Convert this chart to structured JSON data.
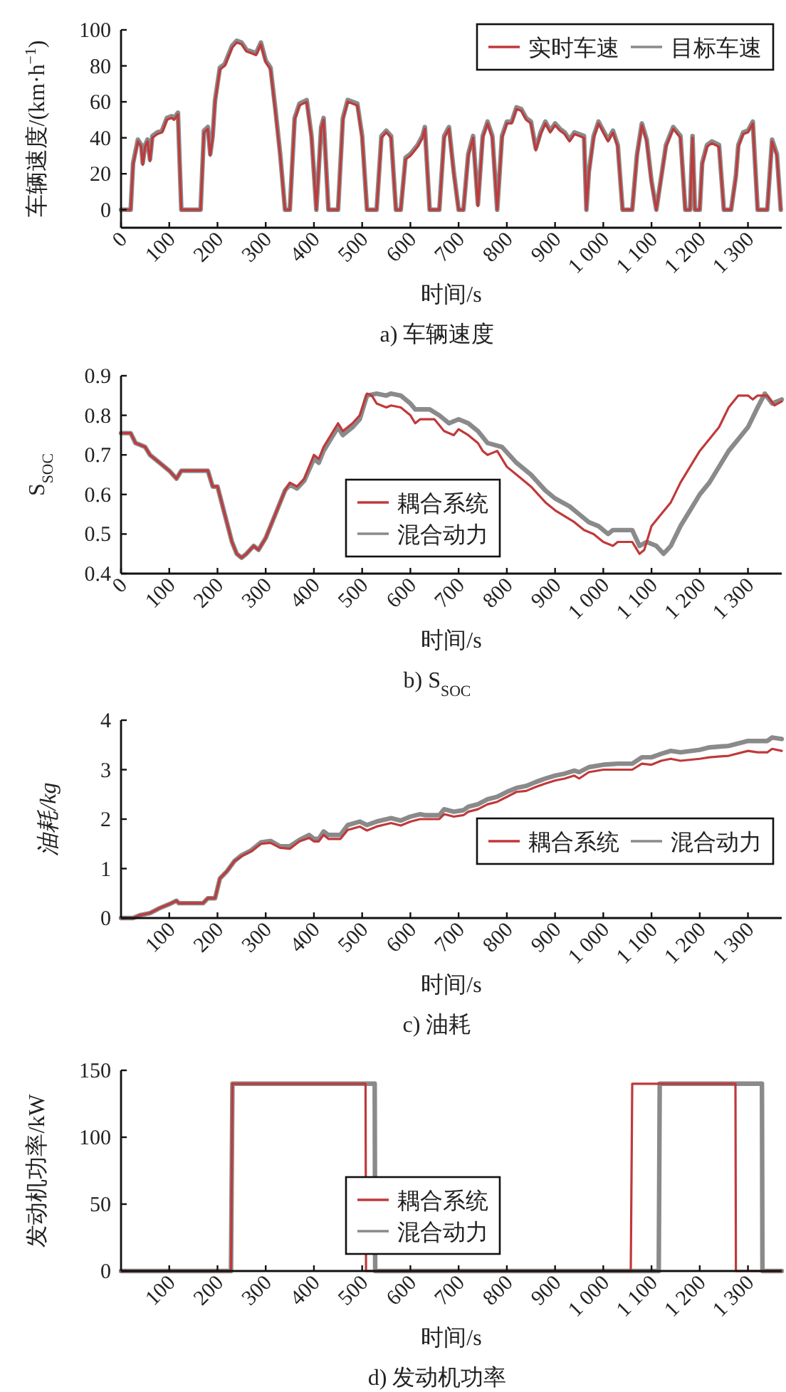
{
  "chart_data": [
    {
      "type": "line",
      "title": "a) 车辆速度",
      "xlabel": "时间/s",
      "ylabel": "车辆速度/(km·h$^{−1}$)",
      "legend": "top right",
      "xlim": [
        0,
        1370
      ],
      "xticks": [
        0,
        100,
        200,
        300,
        400,
        500,
        600,
        700,
        800,
        900,
        {
          "value": 1000,
          "label": "1 000"
        },
        {
          "value": 1100,
          "label": "1 100"
        },
        {
          "value": 1200,
          "label": "1 200"
        },
        {
          "value": 1300,
          "label": "1 300"
        }
      ],
      "ylim": [
        -10,
        100
      ],
      "yticks": [
        0,
        20,
        40,
        60,
        80,
        100
      ],
      "series": [
        {
          "name": "实时车速",
          "color": "#c0393b",
          "x": [
            0,
            20,
            25,
            35,
            42,
            45,
            50,
            55,
            60,
            65,
            75,
            85,
            95,
            105,
            110,
            118,
            125,
            165,
            172,
            180,
            185,
            190,
            195,
            205,
            215,
            230,
            240,
            250,
            260,
            270,
            280,
            290,
            300,
            310,
            320,
            330,
            340,
            350,
            360,
            370,
            385,
            395,
            405,
            415,
            420,
            430,
            450,
            460,
            470,
            490,
            500,
            510,
            530,
            540,
            550,
            560,
            570,
            580,
            590,
            600,
            615,
            625,
            630,
            640,
            660,
            670,
            680,
            690,
            700,
            710,
            720,
            730,
            740,
            750,
            760,
            770,
            780,
            790,
            800,
            810,
            820,
            830,
            840,
            850,
            860,
            870,
            880,
            890,
            900,
            910,
            920,
            930,
            940,
            950,
            960,
            965,
            970,
            980,
            990,
            1000,
            1010,
            1020,
            1030,
            1040,
            1060,
            1070,
            1080,
            1090,
            1100,
            1110,
            1130,
            1145,
            1160,
            1170,
            1180,
            1185,
            1190,
            1200,
            1205,
            1215,
            1225,
            1240,
            1250,
            1265,
            1275,
            1280,
            1290,
            1300,
            1310,
            1320,
            1340,
            1350,
            1360,
            1368
          ],
          "values": [
            0,
            0,
            25,
            38,
            35,
            25,
            35,
            38,
            27,
            40,
            42,
            43,
            50,
            51,
            50,
            53,
            0,
            0,
            43,
            45,
            30,
            40,
            60,
            78,
            80,
            90,
            93,
            92,
            88,
            87,
            86,
            92,
            82,
            78,
            55,
            30,
            0,
            0,
            50,
            58,
            60,
            40,
            0,
            45,
            50,
            0,
            0,
            50,
            60,
            58,
            40,
            0,
            0,
            40,
            43,
            40,
            0,
            0,
            28,
            30,
            35,
            40,
            45,
            0,
            0,
            40,
            45,
            20,
            0,
            0,
            30,
            40,
            2,
            40,
            48,
            40,
            0,
            40,
            48,
            48,
            56,
            55,
            50,
            48,
            33,
            42,
            48,
            43,
            47,
            44,
            42,
            38,
            42,
            41,
            40,
            0,
            20,
            40,
            48,
            43,
            38,
            43,
            35,
            0,
            0,
            30,
            47,
            38,
            15,
            0,
            35,
            45,
            40,
            0,
            0,
            40,
            0,
            0,
            25,
            35,
            37,
            35,
            0,
            0,
            18,
            35,
            42,
            43,
            48,
            0,
            0,
            38,
            30,
            0
          ]
        },
        {
          "name": "目标车速",
          "color": "#8a8a8a",
          "x": [
            0,
            20,
            25,
            35,
            42,
            45,
            50,
            55,
            60,
            65,
            75,
            85,
            95,
            105,
            110,
            118,
            125,
            165,
            172,
            180,
            185,
            190,
            195,
            205,
            215,
            230,
            240,
            250,
            260,
            270,
            280,
            290,
            300,
            310,
            320,
            330,
            340,
            350,
            360,
            370,
            385,
            395,
            405,
            415,
            420,
            430,
            450,
            460,
            470,
            490,
            500,
            510,
            530,
            540,
            550,
            560,
            570,
            580,
            590,
            600,
            615,
            625,
            630,
            640,
            660,
            670,
            680,
            690,
            700,
            710,
            720,
            730,
            740,
            750,
            760,
            770,
            780,
            790,
            800,
            810,
            820,
            830,
            840,
            850,
            860,
            870,
            880,
            890,
            900,
            910,
            920,
            930,
            940,
            950,
            960,
            965,
            970,
            980,
            990,
            1000,
            1010,
            1020,
            1030,
            1040,
            1060,
            1070,
            1080,
            1090,
            1100,
            1110,
            1130,
            1145,
            1160,
            1170,
            1180,
            1185,
            1190,
            1200,
            1205,
            1215,
            1225,
            1240,
            1250,
            1265,
            1275,
            1280,
            1290,
            1300,
            1310,
            1320,
            1340,
            1350,
            1360,
            1368
          ],
          "values": [
            0,
            0,
            26,
            39,
            36,
            26,
            36,
            39,
            28,
            41,
            43,
            44,
            51,
            52,
            51,
            54,
            0,
            0,
            44,
            46,
            31,
            41,
            61,
            79,
            81,
            91,
            94,
            93,
            89,
            88,
            87,
            93,
            83,
            79,
            56,
            31,
            0,
            0,
            51,
            59,
            61,
            41,
            0,
            46,
            51,
            0,
            0,
            51,
            61,
            59,
            41,
            0,
            0,
            41,
            44,
            41,
            0,
            0,
            29,
            31,
            36,
            41,
            46,
            0,
            0,
            41,
            46,
            21,
            0,
            0,
            31,
            41,
            3,
            41,
            49,
            41,
            0,
            41,
            49,
            49,
            57,
            56,
            51,
            49,
            34,
            43,
            49,
            44,
            48,
            45,
            43,
            39,
            43,
            42,
            41,
            0,
            21,
            41,
            49,
            44,
            39,
            44,
            36,
            0,
            0,
            31,
            48,
            39,
            16,
            0,
            36,
            46,
            41,
            0,
            0,
            41,
            0,
            0,
            26,
            36,
            38,
            36,
            0,
            0,
            19,
            36,
            43,
            44,
            49,
            0,
            0,
            39,
            31,
            0
          ]
        }
      ]
    },
    {
      "type": "line",
      "title": "b) S$_{SOC}$",
      "xlabel": "时间/s",
      "ylabel": "S$_{SOC}$",
      "legend": "bottom",
      "xlim": [
        0,
        1370
      ],
      "xticks": [
        0,
        100,
        200,
        300,
        400,
        500,
        600,
        700,
        800,
        900,
        {
          "value": 1000,
          "label": "1 000"
        },
        {
          "value": 1100,
          "label": "1 100"
        },
        {
          "value": 1200,
          "label": "1 200"
        },
        {
          "value": 1300,
          "label": "1 300"
        }
      ],
      "ylim": [
        0.4,
        0.9
      ],
      "yticks": [
        0.4,
        0.5,
        0.6,
        0.7,
        0.8,
        0.9
      ],
      "series": [
        {
          "name": "耦合系统",
          "color": "#c0393b",
          "x": [
            0,
            20,
            30,
            50,
            60,
            80,
            100,
            115,
            125,
            180,
            190,
            200,
            215,
            230,
            240,
            250,
            260,
            275,
            285,
            300,
            320,
            340,
            350,
            365,
            380,
            400,
            410,
            420,
            440,
            450,
            460,
            480,
            495,
            510,
            520,
            530,
            550,
            560,
            580,
            600,
            610,
            620,
            650,
            670,
            690,
            700,
            720,
            740,
            750,
            760,
            780,
            800,
            830,
            850,
            880,
            900,
            940,
            960,
            980,
            1000,
            1020,
            1030,
            1060,
            1075,
            1085,
            1100,
            1120,
            1140,
            1160,
            1180,
            1200,
            1220,
            1240,
            1260,
            1280,
            1300,
            1310,
            1320,
            1340,
            1355,
            1370
          ],
          "values": [
            0.755,
            0.755,
            0.73,
            0.72,
            0.7,
            0.68,
            0.66,
            0.64,
            0.66,
            0.66,
            0.62,
            0.62,
            0.55,
            0.48,
            0.45,
            0.44,
            0.45,
            0.47,
            0.46,
            0.49,
            0.55,
            0.61,
            0.63,
            0.62,
            0.64,
            0.7,
            0.69,
            0.72,
            0.76,
            0.78,
            0.76,
            0.78,
            0.8,
            0.855,
            0.85,
            0.83,
            0.82,
            0.825,
            0.82,
            0.8,
            0.78,
            0.79,
            0.79,
            0.76,
            0.75,
            0.765,
            0.75,
            0.73,
            0.71,
            0.7,
            0.71,
            0.67,
            0.64,
            0.62,
            0.58,
            0.56,
            0.53,
            0.51,
            0.5,
            0.48,
            0.47,
            0.48,
            0.48,
            0.45,
            0.46,
            0.52,
            0.55,
            0.58,
            0.63,
            0.67,
            0.71,
            0.74,
            0.77,
            0.82,
            0.85,
            0.85,
            0.84,
            0.85,
            0.85,
            0.825,
            0.835
          ]
        },
        {
          "name": "混合动力",
          "color": "#8a8a8a",
          "x": [
            0,
            20,
            30,
            50,
            60,
            80,
            100,
            115,
            125,
            180,
            190,
            200,
            215,
            230,
            240,
            250,
            260,
            275,
            285,
            300,
            320,
            340,
            350,
            365,
            380,
            400,
            410,
            420,
            440,
            450,
            460,
            480,
            495,
            510,
            530,
            550,
            560,
            580,
            600,
            610,
            640,
            660,
            680,
            700,
            720,
            740,
            760,
            790,
            820,
            850,
            880,
            900,
            930,
            950,
            970,
            990,
            1010,
            1020,
            1060,
            1075,
            1090,
            1110,
            1125,
            1140,
            1160,
            1180,
            1200,
            1220,
            1240,
            1260,
            1280,
            1300,
            1320,
            1335,
            1350,
            1370
          ],
          "values": [
            0.755,
            0.755,
            0.73,
            0.72,
            0.7,
            0.68,
            0.66,
            0.64,
            0.66,
            0.66,
            0.62,
            0.62,
            0.55,
            0.48,
            0.45,
            0.44,
            0.45,
            0.47,
            0.46,
            0.49,
            0.55,
            0.61,
            0.625,
            0.615,
            0.635,
            0.69,
            0.68,
            0.71,
            0.75,
            0.77,
            0.75,
            0.77,
            0.79,
            0.85,
            0.855,
            0.85,
            0.855,
            0.85,
            0.83,
            0.815,
            0.815,
            0.8,
            0.78,
            0.79,
            0.78,
            0.76,
            0.73,
            0.72,
            0.68,
            0.65,
            0.61,
            0.59,
            0.57,
            0.55,
            0.53,
            0.52,
            0.5,
            0.51,
            0.51,
            0.47,
            0.48,
            0.47,
            0.45,
            0.47,
            0.52,
            0.56,
            0.6,
            0.63,
            0.67,
            0.71,
            0.74,
            0.77,
            0.82,
            0.855,
            0.83,
            0.84
          ]
        }
      ]
    },
    {
      "type": "line",
      "title": "c) 油耗",
      "xlabel": "时间/s",
      "ylabel": "油耗/kg",
      "legend": "bottom right",
      "xlim": [
        0,
        1370
      ],
      "xticks": [
        100,
        200,
        300,
        400,
        500,
        600,
        700,
        800,
        900,
        {
          "value": 1000,
          "label": "1 000"
        },
        {
          "value": 1100,
          "label": "1 100"
        },
        {
          "value": 1200,
          "label": "1 200"
        },
        {
          "value": 1300,
          "label": "1 300"
        }
      ],
      "ylim": [
        0,
        4
      ],
      "yticks": [
        0,
        1,
        2,
        3,
        4
      ],
      "series": [
        {
          "name": "耦合系统",
          "color": "#c0393b",
          "x": [
            0,
            25,
            40,
            60,
            80,
            100,
            115,
            120,
            170,
            180,
            195,
            205,
            220,
            235,
            250,
            270,
            290,
            310,
            330,
            350,
            370,
            390,
            400,
            410,
            420,
            430,
            455,
            470,
            495,
            510,
            530,
            560,
            580,
            600,
            620,
            630,
            660,
            670,
            690,
            710,
            720,
            740,
            760,
            780,
            800,
            820,
            840,
            860,
            880,
            900,
            920,
            940,
            950,
            970,
            1000,
            1030,
            1060,
            1080,
            1100,
            1120,
            1140,
            1160,
            1200,
            1220,
            1260,
            1300,
            1320,
            1340,
            1350,
            1370
          ],
          "values": [
            0,
            0,
            0.06,
            0.1,
            0.2,
            0.28,
            0.35,
            0.3,
            0.3,
            0.4,
            0.4,
            0.8,
            0.95,
            1.15,
            1.25,
            1.35,
            1.5,
            1.52,
            1.42,
            1.4,
            1.55,
            1.62,
            1.55,
            1.55,
            1.68,
            1.6,
            1.6,
            1.78,
            1.85,
            1.77,
            1.85,
            1.92,
            1.87,
            1.95,
            2.0,
            2.0,
            2.0,
            2.1,
            2.05,
            2.08,
            2.15,
            2.2,
            2.3,
            2.35,
            2.45,
            2.55,
            2.57,
            2.65,
            2.72,
            2.78,
            2.82,
            2.88,
            2.82,
            2.95,
            3.0,
            3.0,
            3.0,
            3.12,
            3.1,
            3.18,
            3.22,
            3.18,
            3.22,
            3.25,
            3.28,
            3.38,
            3.35,
            3.35,
            3.42,
            3.38
          ]
        },
        {
          "name": "混合动力",
          "color": "#8a8a8a",
          "x": [
            0,
            25,
            40,
            60,
            80,
            100,
            115,
            120,
            170,
            180,
            195,
            205,
            220,
            235,
            250,
            270,
            290,
            310,
            330,
            350,
            370,
            390,
            400,
            410,
            420,
            430,
            455,
            470,
            495,
            510,
            530,
            560,
            580,
            600,
            620,
            630,
            660,
            670,
            690,
            710,
            720,
            740,
            760,
            780,
            800,
            820,
            840,
            860,
            880,
            900,
            920,
            940,
            950,
            970,
            1000,
            1030,
            1060,
            1080,
            1100,
            1120,
            1140,
            1160,
            1200,
            1220,
            1260,
            1300,
            1320,
            1340,
            1350,
            1370
          ],
          "values": [
            0,
            0,
            0.06,
            0.1,
            0.2,
            0.28,
            0.35,
            0.3,
            0.3,
            0.4,
            0.4,
            0.8,
            0.95,
            1.15,
            1.27,
            1.37,
            1.53,
            1.56,
            1.45,
            1.45,
            1.58,
            1.68,
            1.6,
            1.6,
            1.75,
            1.68,
            1.68,
            1.88,
            1.95,
            1.88,
            1.95,
            2.02,
            1.97,
            2.05,
            2.1,
            2.08,
            2.08,
            2.2,
            2.15,
            2.18,
            2.25,
            2.3,
            2.4,
            2.45,
            2.55,
            2.63,
            2.67,
            2.75,
            2.82,
            2.88,
            2.92,
            2.98,
            2.95,
            3.05,
            3.1,
            3.12,
            3.12,
            3.25,
            3.25,
            3.32,
            3.38,
            3.35,
            3.4,
            3.45,
            3.48,
            3.58,
            3.58,
            3.58,
            3.65,
            3.62
          ]
        }
      ]
    },
    {
      "type": "line",
      "title": "d) 发动机功率",
      "xlabel": "时间/s",
      "ylabel": "发动机功率/kW",
      "legend": "bottom",
      "xlim": [
        0,
        1370
      ],
      "xticks": [
        100,
        200,
        300,
        400,
        500,
        600,
        700,
        800,
        900,
        {
          "value": 1000,
          "label": "1 000"
        },
        {
          "value": 1100,
          "label": "1 100"
        },
        {
          "value": 1200,
          "label": "1 200"
        },
        {
          "value": 1300,
          "label": "1 300"
        }
      ],
      "ylim": [
        0,
        150
      ],
      "yticks": [
        0,
        50,
        100,
        150
      ],
      "series": [
        {
          "name": "耦合系统",
          "color": "#c0393b",
          "x": [
            0,
            228,
            231,
            507,
            508,
            1057,
            1060,
            1274,
            1275,
            1370
          ],
          "values": [
            0,
            0,
            140,
            140,
            0,
            0,
            140,
            140,
            0,
            0
          ]
        },
        {
          "name": "混合动力",
          "color": "#8a8a8a",
          "x": [
            0,
            228,
            231,
            526,
            527,
            1115,
            1117,
            1329,
            1330,
            1370
          ],
          "values": [
            0,
            0,
            140,
            140,
            0,
            0,
            140,
            140,
            0,
            0
          ]
        }
      ]
    }
  ]
}
